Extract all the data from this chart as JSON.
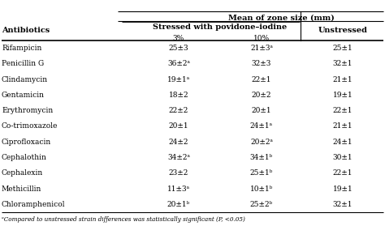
{
  "title": "Mean of zone size (mm)",
  "col_header1": "Stressed with povidone–iodine",
  "col_header2": "Unstressed",
  "sub_headers": [
    "3%",
    "10%"
  ],
  "row_header": "Antibiotics",
  "footnote": "ᵃCompared to unstressed strain differences was statistically significant (P, <0.05)",
  "antibiotics": [
    "Rifampicin",
    "Penicillin G",
    "Clindamycin",
    "Gentamicin",
    "Erythromycin",
    "Co-trimoxazole",
    "Ciprofloxacin",
    "Cephalothin",
    "Cephalexin",
    "Methicillin",
    "Chloramphenicol"
  ],
  "col3": [
    "25±3",
    "36±2ᵃ",
    "19±1ᵃ",
    "18±2",
    "22±2",
    "20±1",
    "24±2",
    "34±2ᵃ",
    "23±2",
    "11±3ᵃ",
    "20±1ᵇ"
  ],
  "col10": [
    "21±3ᵃ",
    "32±3",
    "22±1",
    "20±2",
    "20±1",
    "24±1ᵃ",
    "20±2ᵃ",
    "34±1ᵇ",
    "25±1ᵇ",
    "10±1ᵇ",
    "25±2ᵇ"
  ],
  "colU": [
    "25±1",
    "32±1",
    "21±1",
    "19±1",
    "22±1",
    "21±1",
    "24±1",
    "30±1",
    "22±1",
    "19±1",
    "32±1"
  ],
  "bg_color": "#ffffff",
  "line_color": "#000000",
  "text_color": "#000000",
  "fs_title": 7.0,
  "fs_header": 7.0,
  "fs_data": 6.5,
  "fs_footnote": 5.2
}
